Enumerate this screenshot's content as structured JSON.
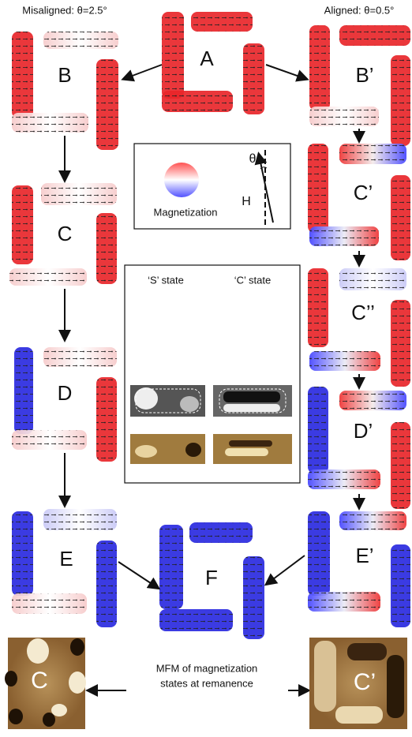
{
  "header": {
    "left": "Misaligned: θ=2.5°",
    "right": "Aligned: θ=0.5°"
  },
  "states": {
    "A": "A",
    "B": "B",
    "B_prime": "B’",
    "C": "C",
    "C_prime": "C’",
    "C_double_prime": "C’’",
    "D": "D",
    "D_prime": "D’",
    "E": "E",
    "E_prime": "E’",
    "F": "F"
  },
  "legend": {
    "label": "Magnetization",
    "angle": "θ",
    "field": "H"
  },
  "inset": {
    "s_state": "‘S’ state",
    "c_state": "‘C’ state"
  },
  "mfm": {
    "left_label": "C",
    "right_label": "C’",
    "caption_line1": "MFM of magnetization",
    "caption_line2": "states at remanence"
  }
}
